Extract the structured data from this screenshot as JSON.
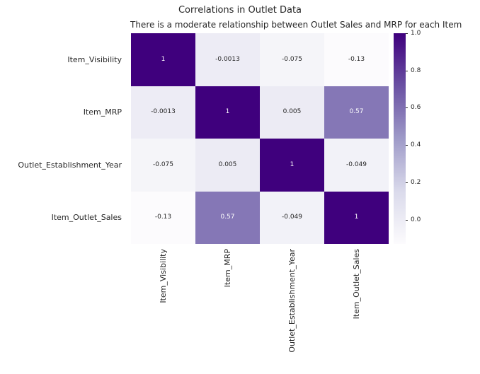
{
  "chart_data": {
    "type": "heatmap",
    "title": "Correlations in Outlet Data",
    "subtitle": "There is a moderate relationship between Outlet Sales and MRP for each Item",
    "categories": [
      "Item_Visibility",
      "Item_MRP",
      "Outlet_Establishment_Year",
      "Item_Outlet_Sales"
    ],
    "matrix": [
      [
        1,
        -0.0013,
        -0.075,
        -0.13
      ],
      [
        -0.0013,
        1,
        0.005,
        0.57
      ],
      [
        -0.075,
        0.005,
        1,
        -0.049
      ],
      [
        -0.13,
        0.57,
        -0.049,
        1
      ]
    ],
    "annotated": true,
    "grid": false,
    "colormap": "Purples",
    "colormap_stops": [
      "#fcfbfd",
      "#dadaeb",
      "#9e9ac8",
      "#6a51a3",
      "#3f007d"
    ],
    "vmin": -0.13,
    "vmax": 1.0,
    "colorbar": {
      "position": "right",
      "tick_labels": [
        "1.0",
        "0.8",
        "0.6",
        "0.4",
        "0.2",
        "0.0"
      ],
      "tick_values": [
        1.0,
        0.8,
        0.6,
        0.4,
        0.2,
        0.0
      ]
    }
  },
  "colors": {
    "background": "#ffffff",
    "text": "#262626",
    "annotation_light": "#ffffff",
    "annotation_dark": "#262626"
  }
}
